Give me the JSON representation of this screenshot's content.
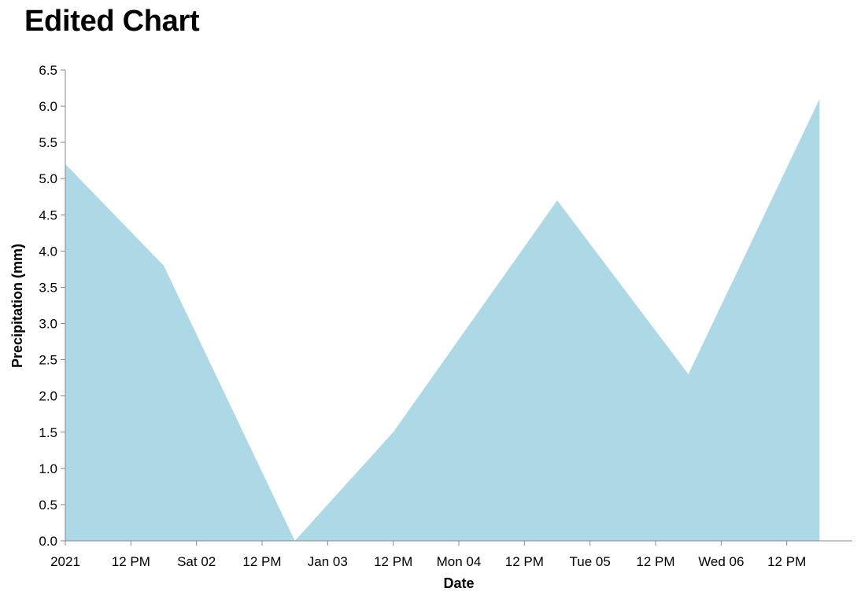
{
  "chart_data": {
    "type": "area",
    "title": "Edited Chart",
    "xlabel": "Date",
    "ylabel": "Precipitation (mm)",
    "x": [
      "2021-01-01T00:00",
      "2021-01-01T18:00",
      "2021-01-02T18:00",
      "2021-01-03T12:00",
      "2021-01-04T18:00",
      "2021-01-05T18:00",
      "2021-01-06T18:00"
    ],
    "values": [
      5.2,
      3.8,
      0.0,
      1.5,
      4.7,
      2.3,
      6.1
    ],
    "xlim": [
      "2021-01-01T00:00",
      "2021-01-07T00:00"
    ],
    "ylim": [
      0,
      6.5
    ],
    "yticks": [
      0.0,
      0.5,
      1.0,
      1.5,
      2.0,
      2.5,
      3.0,
      3.5,
      4.0,
      4.5,
      5.0,
      5.5,
      6.0,
      6.5
    ],
    "ytick_labels": [
      "0.0",
      "0.5",
      "1.0",
      "1.5",
      "2.0",
      "2.5",
      "3.0",
      "3.5",
      "4.0",
      "4.5",
      "5.0",
      "5.5",
      "6.0",
      "6.5"
    ],
    "xticks": [
      "2021-01-01T00:00",
      "2021-01-01T12:00",
      "2021-01-02T00:00",
      "2021-01-02T12:00",
      "2021-01-03T00:00",
      "2021-01-03T12:00",
      "2021-01-04T00:00",
      "2021-01-04T12:00",
      "2021-01-05T00:00",
      "2021-01-05T12:00",
      "2021-01-06T00:00",
      "2021-01-06T12:00"
    ],
    "xtick_labels": [
      "2021",
      "12 PM",
      "Sat 02",
      "12 PM",
      "Jan 03",
      "12 PM",
      "Mon 04",
      "12 PM",
      "Tue 05",
      "12 PM",
      "Wed 06",
      "12 PM"
    ],
    "grid": false,
    "legend": "none",
    "fill_color": "#ADD8E6",
    "axis_color": "#888888"
  }
}
